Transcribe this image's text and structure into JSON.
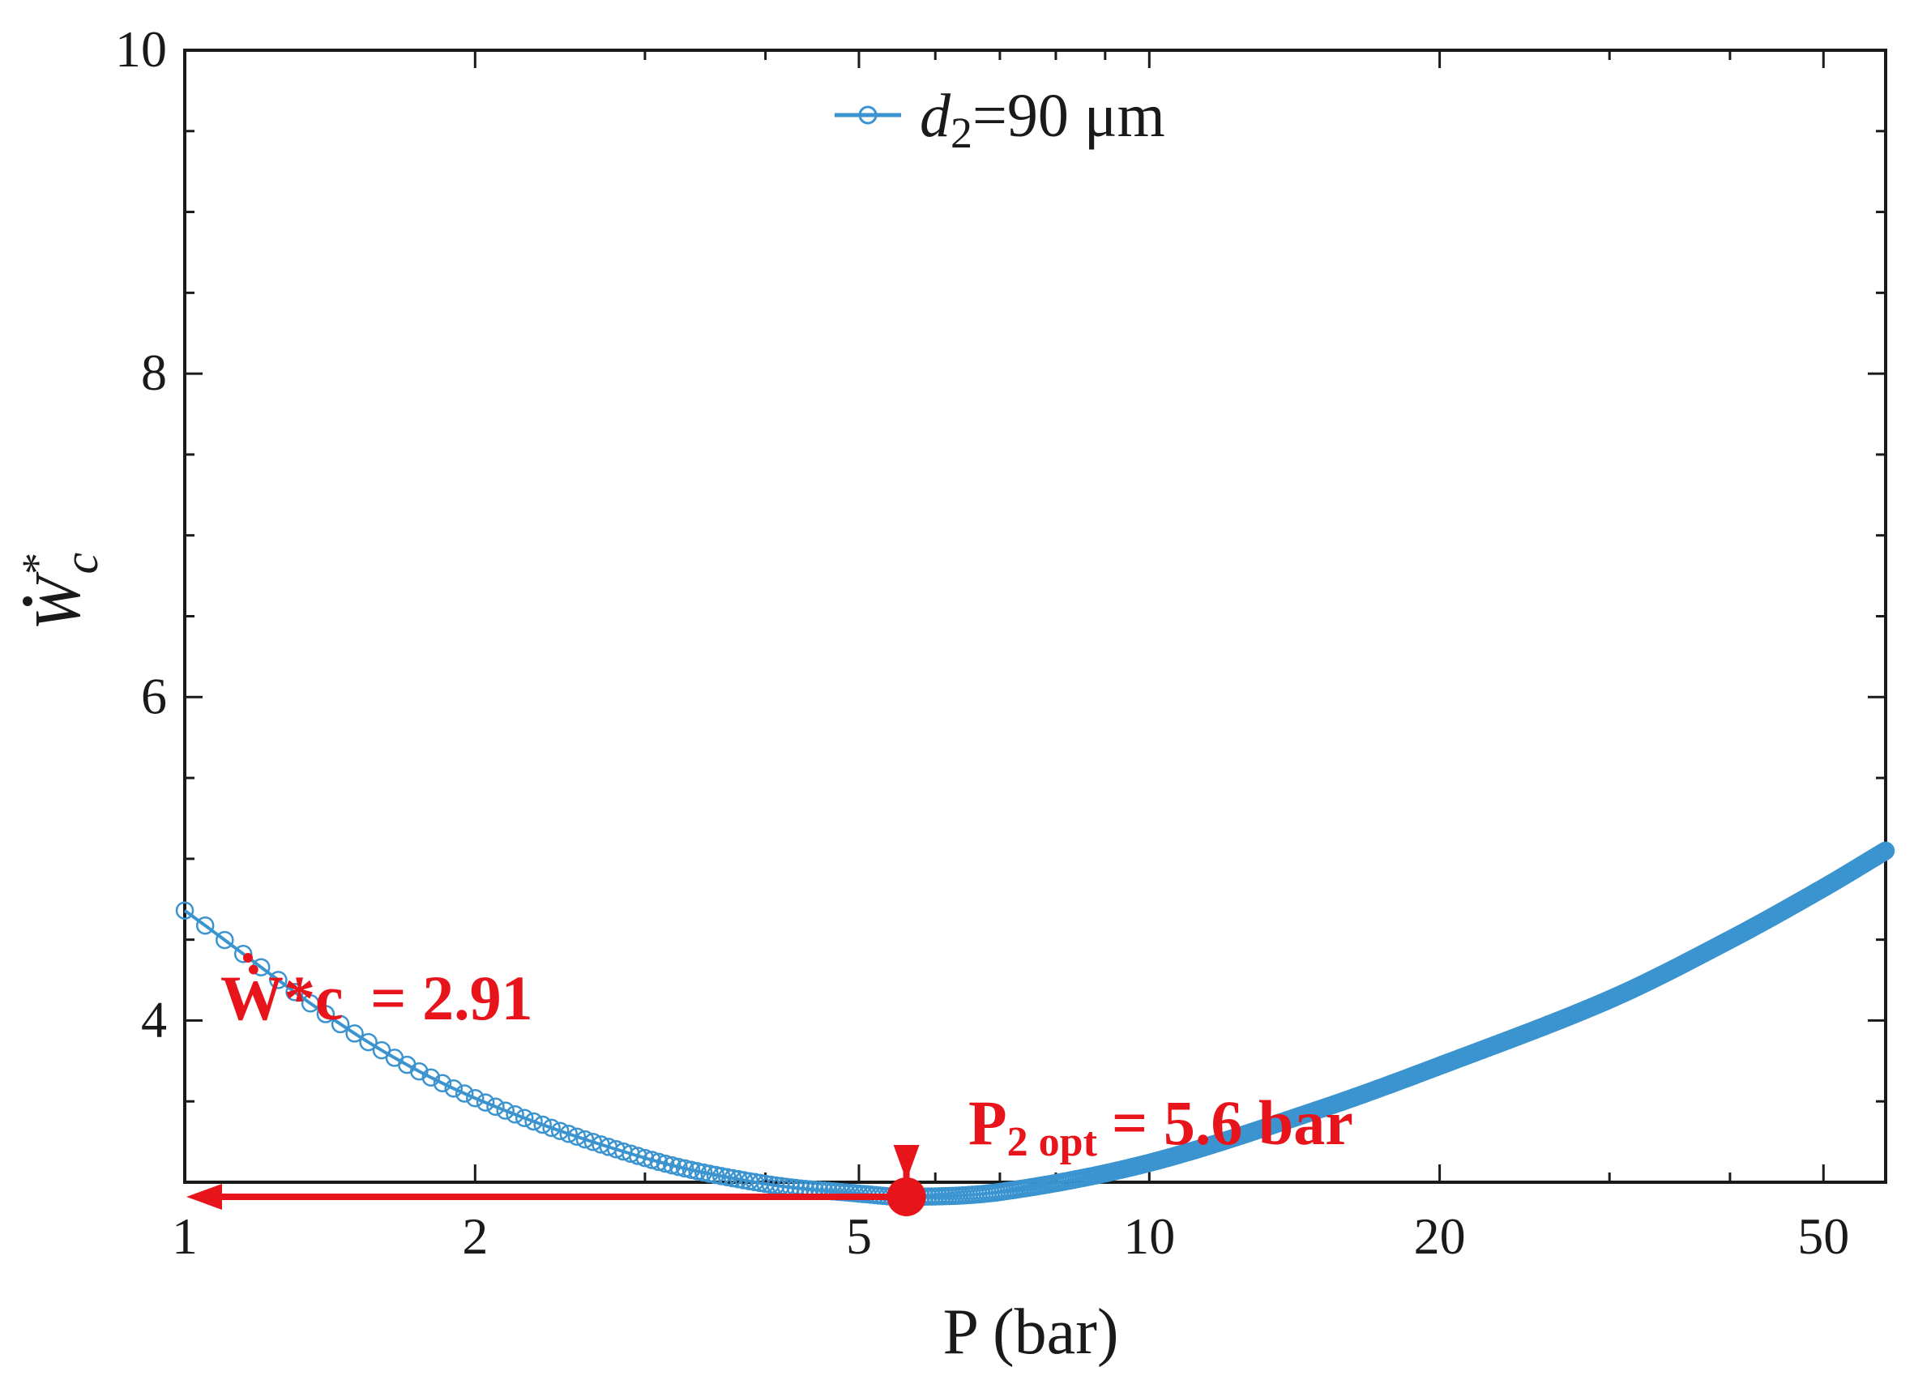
{
  "chart_data": {
    "type": "line",
    "title": "",
    "xlabel": "P (bar)",
    "ylabel": "Ẇ*c",
    "xscale": "log",
    "xlim": [
      1,
      58
    ],
    "ylim": [
      3.0,
      10
    ],
    "x_ticks": [
      1,
      2,
      5,
      10,
      20,
      50
    ],
    "x_tick_labels": [
      "1",
      "2",
      "5",
      "10",
      "20",
      "50"
    ],
    "y_ticks": [
      4,
      6,
      8,
      10
    ],
    "y_tick_labels": [
      "4",
      "6",
      "8",
      "10"
    ],
    "grid": false,
    "legend": {
      "position": "top-center",
      "entries": [
        "d2=90 μm"
      ]
    },
    "series": [
      {
        "name": "d2=90 μm",
        "color": "#3b94cf",
        "marker": "open-circle",
        "x": [
          1,
          1.5,
          2,
          3,
          4,
          5,
          5.6,
          7,
          10,
          15,
          20,
          30,
          40,
          50,
          58
        ],
        "y": [
          4.68,
          3.92,
          3.52,
          3.15,
          2.99,
          2.93,
          2.91,
          2.94,
          3.12,
          3.45,
          3.72,
          4.13,
          4.5,
          4.82,
          5.05
        ]
      }
    ],
    "annotations": {
      "optimum_point": {
        "x": 5.6,
        "y": 2.91
      },
      "w_label": "Ẇ*c",
      "w_value_text": "= 2.91",
      "p_label_main": "P",
      "p_label_sub": "2 opt",
      "p_value_text": "= 5.6 bar",
      "annotation_color": "#e8141b"
    }
  },
  "legend_label": {
    "symbol": "d",
    "subscript": "2",
    "value": "=90 μm"
  },
  "axis_labels": {
    "x": "P (bar)",
    "y_main": "W",
    "y_sup": "*",
    "y_sub": "c"
  }
}
